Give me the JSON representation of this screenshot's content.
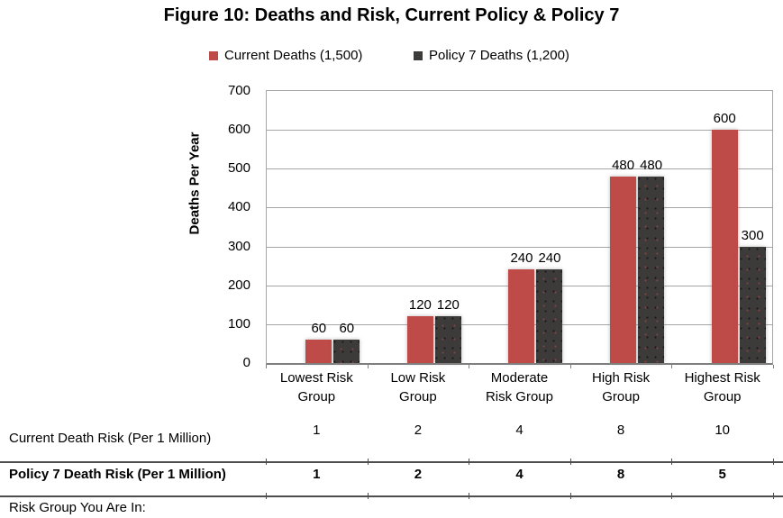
{
  "title": "Figure 10: Deaths and Risk, Current Policy & Policy 7",
  "colors": {
    "current_deaths": "#BE4B48",
    "policy7_deaths": "#3D3A3A",
    "gridline": "#A6A6A6",
    "axis_line": "#7F7F7F",
    "table_line": "#4D4D4D"
  },
  "legend": {
    "items": [
      {
        "label": "Current Deaths (1,500)",
        "color": "#BE4B48"
      },
      {
        "label": "Policy 7 Deaths (1,200)",
        "color": "#3D3A3A"
      }
    ]
  },
  "chart_data": {
    "type": "bar",
    "title": "Figure 10: Deaths and Risk, Current Policy & Policy 7",
    "categories": [
      "Lowest Risk Group",
      "Low Risk Group",
      "Moderate Risk Group",
      "High Risk Group",
      "Highest Risk Group"
    ],
    "category_labels_wrapped": [
      "Lowest Risk\nGroup",
      "Low Risk\nGroup",
      "Moderate\nRisk Group",
      "High Risk\nGroup",
      "Highest Risk\nGroup"
    ],
    "series": [
      {
        "name": "Current Deaths (1,500)",
        "color": "#BE4B48",
        "values": [
          60,
          120,
          240,
          480,
          600
        ]
      },
      {
        "name": "Policy 7 Deaths (1,200)",
        "color": "#3D3A3A",
        "values": [
          60,
          120,
          240,
          480,
          300
        ]
      }
    ],
    "xlabel": "",
    "ylabel": "Deaths Per Year",
    "ylim": [
      0,
      700
    ],
    "yticks": [
      700,
      600,
      500,
      400,
      300,
      200,
      100,
      0
    ],
    "grid": true,
    "data_labels": true,
    "legend_position": "top"
  },
  "table": {
    "rows": [
      {
        "label": "Current Death Risk (Per 1 Million)",
        "values": [
          "1",
          "2",
          "4",
          "8",
          "10"
        ],
        "bold": false
      },
      {
        "label": "Policy 7 Death Risk (Per 1 Million)",
        "values": [
          "1",
          "2",
          "4",
          "8",
          "5"
        ],
        "bold": true
      },
      {
        "label": "Risk Group You Are In:",
        "values": [],
        "bold": false
      }
    ]
  }
}
